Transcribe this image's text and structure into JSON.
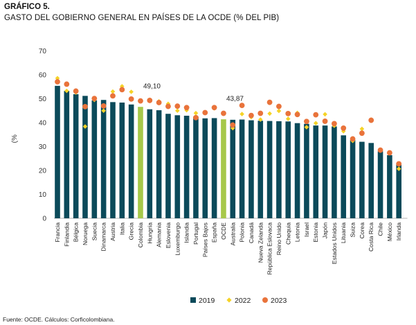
{
  "title": "GRÁFICO 5.",
  "subtitle": "GASTO DEL GOBIERNO GENERAL EN PAÍSES DE LA OCDE (% DEL  PIB)",
  "source": "Fuente: OCDE. Cálculos: Corficolombiana.",
  "colors": {
    "bar": "#0b4a5a",
    "highlight": "#a6c84a",
    "diamond": "#f5d327",
    "dot": "#e9733b"
  },
  "chart_data": {
    "type": "bar",
    "ylabel": "(%",
    "ylim": [
      0,
      70
    ],
    "yticks": [
      0,
      10,
      20,
      30,
      40,
      50,
      60,
      70
    ],
    "grid": false,
    "legend_position": "bottom",
    "categories": [
      "Francia",
      "Finlandia",
      "Bélgica",
      "Noruega",
      "Suecia",
      "Dinamarca",
      "Austria",
      "Italia",
      "Grecia",
      "Colombia",
      "Hungría",
      "Alemania",
      "Eslovenia",
      "Luxemburgo",
      "Islandia",
      "Portugal",
      "Países Bajos",
      "España",
      "OCDE",
      "Australia",
      "Polonia",
      "Canadá",
      "Nueva Zelanda",
      "República Eslovaca",
      "Reino Unido",
      "Chequia",
      "Letonia",
      "Israel",
      "Estonia",
      "Japón",
      "Estados Unidos",
      "Lituania",
      "Suiza",
      "Corea",
      "Costa Rica",
      "Chile",
      "México",
      "Irlanda"
    ],
    "highlight": [
      "Colombia",
      "OCDE"
    ],
    "annotations": [
      {
        "category": "Colombia",
        "text": "49,10"
      },
      {
        "category": "OCDE",
        "text": "43,87"
      }
    ],
    "series": [
      {
        "name": "2019",
        "kind": "bar",
        "values": [
          55.4,
          53.3,
          51.9,
          51.2,
          49.3,
          49.5,
          48.6,
          48.4,
          47.6,
          46.6,
          45.6,
          45.2,
          43.7,
          43.1,
          42.9,
          42.5,
          41.8,
          41.9,
          41.4,
          41.2,
          41.3,
          41.0,
          40.8,
          40.7,
          40.6,
          40.5,
          39.8,
          39.5,
          38.8,
          38.8,
          38.4,
          34.7,
          32.7,
          32.0,
          31.5,
          28.0,
          26.4,
          23.0
        ]
      },
      {
        "name": "2022",
        "kind": "diamond",
        "values": [
          58.6,
          53.3,
          52.6,
          38.4,
          49.5,
          45.0,
          53.0,
          55.2,
          52.9,
          null,
          49.6,
          48.9,
          47.9,
          45.0,
          45.2,
          44.0,
          44.3,
          46.0,
          null,
          37.7,
          43.6,
          42.3,
          41.3,
          43.8,
          44.9,
          41.6,
          44.1,
          38.1,
          39.8,
          43.5,
          38.7,
          36.4,
          32.4,
          37.4,
          41.3,
          28.6,
          27.4,
          20.7
        ]
      },
      {
        "name": "2023",
        "kind": "dot",
        "values": [
          57.1,
          56.1,
          53.2,
          46.7,
          50.1,
          47.0,
          51.2,
          53.8,
          49.9,
          49.1,
          49.3,
          48.4,
          46.8,
          46.9,
          46.3,
          42.1,
          44.2,
          46.3,
          43.9,
          39.0,
          47.2,
          43.0,
          43.9,
          48.5,
          46.8,
          43.8,
          43.4,
          40.5,
          43.3,
          40.6,
          39.6,
          37.7,
          33.2,
          35.6,
          41.0,
          28.5,
          27.4,
          22.8
        ]
      }
    ]
  }
}
